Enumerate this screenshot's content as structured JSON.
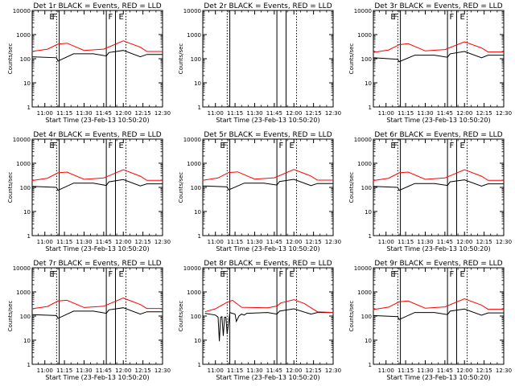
{
  "figure": {
    "xlabel": "Start Time (23-Feb-13 10:50:20)",
    "ylabel": "Counts/sec",
    "x_ticks": [
      "11:00",
      "11:15",
      "11:30",
      "11:45",
      "12:00",
      "12:15",
      "12:30"
    ],
    "y_ticks": [
      "1",
      "10",
      "100",
      "1000",
      "10000"
    ]
  },
  "colors": {
    "events": "#000000",
    "lld": "#ff0000",
    "frame": "#000000",
    "background": "#ffffff"
  },
  "chart_data": [
    {
      "type": "line",
      "title": "Det 1r BLACK = Events, RED = LLD",
      "xlim": [
        "10:50:20",
        "12:30:00"
      ],
      "ylim": [
        1,
        10000
      ],
      "yscale": "log",
      "grid": false,
      "markers": [
        {
          "time": "11:09",
          "label": "E",
          "style": "dotted"
        },
        {
          "time": "11:11",
          "label": "F",
          "style": "solid"
        },
        {
          "time": "11:47",
          "label": "",
          "style": "solid"
        },
        {
          "time": "11:54",
          "label": "F",
          "style": "solid"
        },
        {
          "time": "12:02",
          "label": "E",
          "style": "dotted"
        }
      ],
      "series": [
        {
          "name": "Events",
          "color": "#000000",
          "x": [
            "10:50",
            "11:09",
            "11:10",
            "11:22",
            "11:37",
            "11:47",
            "11:49",
            "12:00",
            "12:13",
            "12:18",
            "12:30"
          ],
          "y": [
            120,
            110,
            80,
            160,
            160,
            130,
            180,
            220,
            120,
            150,
            150
          ]
        },
        {
          "name": "LLD",
          "color": "#ff0000",
          "x": [
            "10:50",
            "11:02",
            "11:10",
            "11:17",
            "11:30",
            "11:45",
            "12:00",
            "12:13",
            "12:18",
            "12:30"
          ],
          "y": [
            200,
            250,
            400,
            440,
            220,
            250,
            550,
            300,
            200,
            200
          ]
        }
      ]
    },
    {
      "type": "line",
      "title": "Det 2r BLACK = Events, RED = LLD",
      "xlim": [
        "10:50:20",
        "12:30:00"
      ],
      "ylim": [
        1,
        10000
      ],
      "yscale": "log",
      "grid": false,
      "markers": [
        {
          "time": "11:09",
          "label": "",
          "style": "dotted"
        },
        {
          "time": "11:11",
          "label": "",
          "style": "solid"
        },
        {
          "time": "11:47",
          "label": "",
          "style": "solid"
        },
        {
          "time": "11:54",
          "label": "",
          "style": "solid"
        },
        {
          "time": "12:02",
          "label": "",
          "style": "dotted"
        }
      ],
      "series": []
    },
    {
      "type": "line",
      "title": "Det 3r BLACK = Events, RED = LLD",
      "xlim": [
        "10:50:20",
        "12:30:00"
      ],
      "ylim": [
        1,
        10000
      ],
      "yscale": "log",
      "grid": false,
      "markers": [
        {
          "time": "11:09",
          "label": "E",
          "style": "dotted"
        },
        {
          "time": "11:11",
          "label": "F",
          "style": "solid"
        },
        {
          "time": "11:47",
          "label": "",
          "style": "solid"
        },
        {
          "time": "11:54",
          "label": "F",
          "style": "solid"
        },
        {
          "time": "12:02",
          "label": "E",
          "style": "dotted"
        }
      ],
      "series": [
        {
          "name": "Events",
          "color": "#000000",
          "x": [
            "10:50",
            "11:09",
            "11:10",
            "11:22",
            "11:37",
            "11:47",
            "11:49",
            "12:00",
            "12:13",
            "12:18",
            "12:30"
          ],
          "y": [
            110,
            95,
            75,
            140,
            140,
            115,
            160,
            200,
            110,
            140,
            140
          ]
        },
        {
          "name": "LLD",
          "color": "#ff0000",
          "x": [
            "10:50",
            "11:02",
            "11:10",
            "11:17",
            "11:30",
            "11:45",
            "12:00",
            "12:13",
            "12:18",
            "12:30"
          ],
          "y": [
            180,
            230,
            380,
            420,
            210,
            240,
            500,
            280,
            190,
            190
          ]
        }
      ]
    },
    {
      "type": "line",
      "title": "Det 4r BLACK = Events, RED = LLD",
      "xlim": [
        "10:50:20",
        "12:30:00"
      ],
      "ylim": [
        1,
        10000
      ],
      "yscale": "log",
      "grid": false,
      "markers": [
        {
          "time": "11:09",
          "label": "E",
          "style": "dotted"
        },
        {
          "time": "11:11",
          "label": "F",
          "style": "solid"
        },
        {
          "time": "11:47",
          "label": "",
          "style": "solid"
        },
        {
          "time": "11:54",
          "label": "F",
          "style": "solid"
        },
        {
          "time": "12:02",
          "label": "E",
          "style": "dotted"
        }
      ],
      "series": [
        {
          "name": "Events",
          "color": "#000000",
          "x": [
            "10:50",
            "11:09",
            "11:10",
            "11:22",
            "11:37",
            "11:47",
            "11:49",
            "12:00",
            "12:13",
            "12:18",
            "12:30"
          ],
          "y": [
            110,
            100,
            75,
            150,
            150,
            120,
            170,
            210,
            115,
            140,
            140
          ]
        },
        {
          "name": "LLD",
          "color": "#ff0000",
          "x": [
            "10:50",
            "11:02",
            "11:10",
            "11:17",
            "11:30",
            "11:45",
            "12:00",
            "12:13",
            "12:18",
            "12:30"
          ],
          "y": [
            190,
            240,
            400,
            430,
            215,
            245,
            540,
            290,
            195,
            195
          ]
        }
      ]
    },
    {
      "type": "line",
      "title": "Det 5r BLACK = Events, RED = LLD",
      "xlim": [
        "10:50:20",
        "12:30:00"
      ],
      "ylim": [
        1,
        10000
      ],
      "yscale": "log",
      "grid": false,
      "markers": [
        {
          "time": "11:09",
          "label": "E",
          "style": "dotted"
        },
        {
          "time": "11:11",
          "label": "F",
          "style": "solid"
        },
        {
          "time": "11:47",
          "label": "",
          "style": "solid"
        },
        {
          "time": "11:54",
          "label": "F",
          "style": "solid"
        },
        {
          "time": "12:02",
          "label": "E",
          "style": "dotted"
        }
      ],
      "series": [
        {
          "name": "Events",
          "color": "#000000",
          "x": [
            "10:50",
            "11:09",
            "11:10",
            "11:22",
            "11:37",
            "11:47",
            "11:49",
            "12:00",
            "12:13",
            "12:18",
            "12:30"
          ],
          "y": [
            115,
            105,
            78,
            150,
            150,
            125,
            175,
            215,
            118,
            145,
            145
          ]
        },
        {
          "name": "LLD",
          "color": "#ff0000",
          "x": [
            "10:50",
            "11:02",
            "11:10",
            "11:17",
            "11:30",
            "11:45",
            "12:00",
            "12:13",
            "12:18",
            "12:30"
          ],
          "y": [
            195,
            245,
            410,
            440,
            220,
            250,
            550,
            295,
            200,
            200
          ]
        }
      ]
    },
    {
      "type": "line",
      "title": "Det 6r BLACK = Events, RED = LLD",
      "xlim": [
        "10:50:20",
        "12:30:00"
      ],
      "ylim": [
        1,
        10000
      ],
      "yscale": "log",
      "grid": false,
      "markers": [
        {
          "time": "11:09",
          "label": "E",
          "style": "dotted"
        },
        {
          "time": "11:11",
          "label": "F",
          "style": "solid"
        },
        {
          "time": "11:47",
          "label": "",
          "style": "solid"
        },
        {
          "time": "11:54",
          "label": "F",
          "style": "solid"
        },
        {
          "time": "12:02",
          "label": "E",
          "style": "dotted"
        }
      ],
      "series": [
        {
          "name": "Events",
          "color": "#000000",
          "x": [
            "10:50",
            "11:09",
            "11:10",
            "11:22",
            "11:37",
            "11:47",
            "11:49",
            "12:00",
            "12:13",
            "12:18",
            "12:30"
          ],
          "y": [
            110,
            100,
            75,
            145,
            145,
            120,
            170,
            205,
            112,
            140,
            140
          ]
        },
        {
          "name": "LLD",
          "color": "#ff0000",
          "x": [
            "10:50",
            "11:02",
            "11:10",
            "11:17",
            "11:30",
            "11:45",
            "12:00",
            "12:13",
            "12:18",
            "12:30"
          ],
          "y": [
            190,
            240,
            400,
            430,
            215,
            245,
            540,
            290,
            195,
            195
          ]
        }
      ]
    },
    {
      "type": "line",
      "title": "Det 7r BLACK = Events, RED = LLD",
      "xlim": [
        "10:50:20",
        "12:30:00"
      ],
      "ylim": [
        1,
        10000
      ],
      "yscale": "log",
      "grid": false,
      "markers": [
        {
          "time": "11:09",
          "label": "E",
          "style": "dotted"
        },
        {
          "time": "11:11",
          "label": "F",
          "style": "solid"
        },
        {
          "time": "11:47",
          "label": "",
          "style": "solid"
        },
        {
          "time": "11:54",
          "label": "F",
          "style": "solid"
        },
        {
          "time": "12:02",
          "label": "E",
          "style": "dotted"
        }
      ],
      "series": [
        {
          "name": "Events",
          "color": "#000000",
          "x": [
            "10:50",
            "11:09",
            "11:10",
            "11:22",
            "11:37",
            "11:47",
            "11:49",
            "12:00",
            "12:13",
            "12:18",
            "12:30"
          ],
          "y": [
            115,
            105,
            80,
            160,
            160,
            130,
            180,
            220,
            120,
            150,
            150
          ]
        },
        {
          "name": "LLD",
          "color": "#ff0000",
          "x": [
            "10:50",
            "11:02",
            "11:10",
            "11:17",
            "11:30",
            "11:45",
            "12:00",
            "12:13",
            "12:18",
            "12:30"
          ],
          "y": [
            200,
            250,
            420,
            450,
            225,
            255,
            560,
            300,
            205,
            205
          ]
        }
      ]
    },
    {
      "type": "line",
      "title": "Det 8r BLACK = Events, RED = LLD",
      "xlim": [
        "10:50:20",
        "12:30:00"
      ],
      "ylim": [
        1,
        10000
      ],
      "yscale": "log",
      "grid": false,
      "markers": [
        {
          "time": "11:09",
          "label": "E",
          "style": "dotted"
        },
        {
          "time": "11:11",
          "label": "F",
          "style": "solid"
        },
        {
          "time": "11:47",
          "label": "",
          "style": "solid"
        },
        {
          "time": "11:54",
          "label": "F",
          "style": "solid"
        },
        {
          "time": "12:02",
          "label": "E",
          "style": "dotted"
        }
      ],
      "series": [
        {
          "name": "Events",
          "color": "#000000",
          "x": [
            "10:52",
            "11:00",
            "11:02",
            "11:03",
            "11:04",
            "11:05",
            "11:06",
            "11:07",
            "11:08",
            "11:09",
            "11:11",
            "11:15",
            "11:16",
            "11:18",
            "11:20",
            "11:22",
            "11:24",
            "11:40",
            "11:47",
            "11:49",
            "12:00",
            "12:13",
            "12:18",
            "12:30"
          ],
          "y": [
            130,
            110,
            90,
            9,
            90,
            95,
            15,
            90,
            90,
            18,
            140,
            120,
            60,
            100,
            120,
            110,
            130,
            140,
            120,
            160,
            200,
            120,
            140,
            140
          ]
        },
        {
          "name": "LLD",
          "color": "#ff0000",
          "x": [
            "10:52",
            "11:00",
            "11:08",
            "11:13",
            "11:20",
            "11:40",
            "11:47",
            "11:50",
            "12:00",
            "12:08",
            "12:13",
            "12:18",
            "12:30"
          ],
          "y": [
            150,
            200,
            350,
            450,
            230,
            220,
            260,
            350,
            480,
            330,
            220,
            150,
            140
          ]
        }
      ]
    },
    {
      "type": "line",
      "title": "Det 9r BLACK = Events, RED = LLD",
      "xlim": [
        "10:50:20",
        "12:30:00"
      ],
      "ylim": [
        1,
        10000
      ],
      "yscale": "log",
      "grid": false,
      "markers": [
        {
          "time": "11:09",
          "label": "E",
          "style": "dotted"
        },
        {
          "time": "11:11",
          "label": "F",
          "style": "solid"
        },
        {
          "time": "11:47",
          "label": "",
          "style": "solid"
        },
        {
          "time": "11:54",
          "label": "F",
          "style": "solid"
        },
        {
          "time": "12:02",
          "label": "E",
          "style": "dotted"
        }
      ],
      "series": [
        {
          "name": "Events",
          "color": "#000000",
          "x": [
            "10:50",
            "11:09",
            "11:10",
            "11:22",
            "11:37",
            "11:47",
            "11:49",
            "12:00",
            "12:13",
            "12:18",
            "12:30"
          ],
          "y": [
            105,
            95,
            72,
            140,
            140,
            115,
            160,
            195,
            108,
            135,
            135
          ]
        },
        {
          "name": "LLD",
          "color": "#ff0000",
          "x": [
            "10:50",
            "11:02",
            "11:10",
            "11:17",
            "11:30",
            "11:45",
            "12:00",
            "12:13",
            "12:18",
            "12:30"
          ],
          "y": [
            185,
            235,
            390,
            420,
            210,
            240,
            520,
            285,
            190,
            190
          ]
        }
      ]
    }
  ]
}
